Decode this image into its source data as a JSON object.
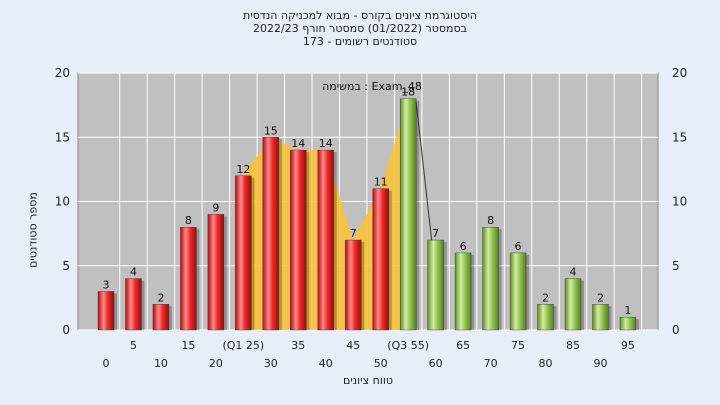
{
  "chart_data": {
    "type": "bar",
    "title_lines": [
      "היסטוגרמת ציונים בקורס - מבוא למכניקה הנדסית",
      "בסמסטר  (01/2022)  סמסטר חורף 2022/23",
      "סטודנטים רשומים - 173"
    ],
    "xlabel": "טווח ציונים",
    "ylabel": "מספר סטודנטים",
    "annotation": "Exam_48 : במשימה",
    "ylim": [
      0,
      20
    ],
    "yticks": [
      0,
      5,
      10,
      15,
      20
    ],
    "categories": [
      "0",
      "5",
      "10",
      "15",
      "20",
      "(Q1 25)",
      "30",
      "35",
      "40",
      "45",
      "50",
      "(Q3 55)",
      "60",
      "65",
      "70",
      "75",
      "80",
      "85",
      "90",
      "95"
    ],
    "values": [
      3,
      4,
      2,
      8,
      9,
      12,
      15,
      14,
      14,
      7,
      11,
      18,
      7,
      6,
      8,
      6,
      2,
      4,
      2,
      1
    ],
    "bar_groups": [
      "red",
      "red",
      "red",
      "red",
      "red",
      "red",
      "red",
      "red",
      "red",
      "red",
      "red",
      "green",
      "green",
      "green",
      "green",
      "green",
      "green",
      "green",
      "green",
      "green"
    ],
    "highlight_band": {
      "from_category": "(Q1 25)",
      "to_category": "(Q3 55)"
    },
    "colors": {
      "red": "#e42424",
      "green": "#8ec24a",
      "band": "#f7c23c",
      "plot_background": "#c0c0c0",
      "grid": "#ffffff"
    },
    "grid": true,
    "legend": "none"
  }
}
